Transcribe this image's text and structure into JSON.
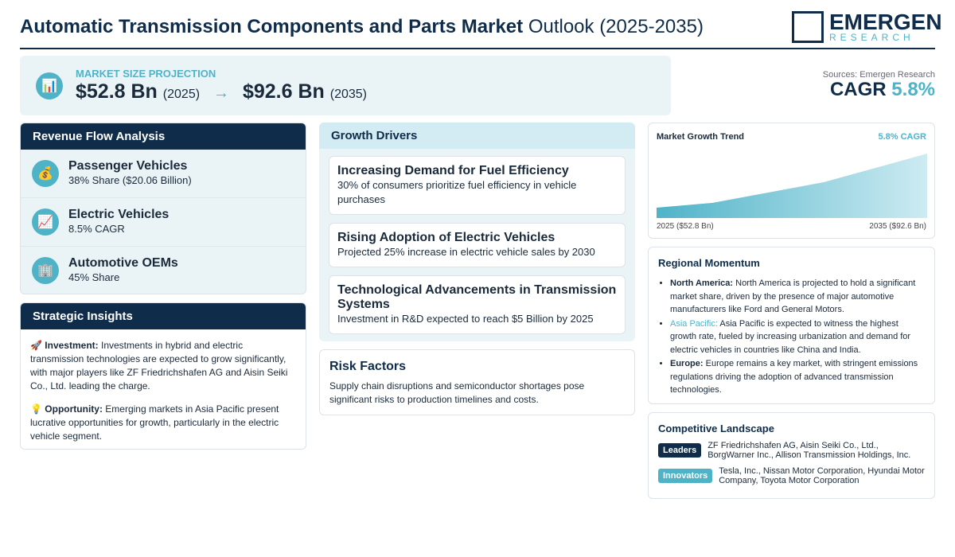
{
  "header": {
    "title_bold": "Automatic Transmission Components and Parts Market",
    "title_rest": "Outlook (2025-2035)",
    "logo_main": "EMERGEN",
    "logo_sub": "RESEARCH"
  },
  "projection": {
    "icon": "📊",
    "label": "MARKET SIZE PROJECTION",
    "start_value": "$52.8 Bn",
    "start_year": "(2025)",
    "arrow": "→",
    "end_value": "$92.6 Bn",
    "end_year": "(2035)"
  },
  "summary": {
    "sources": "Sources: Emergen Research",
    "cagr_label": "CAGR",
    "cagr_value": "5.8%"
  },
  "revenue": {
    "title": "Revenue Flow Analysis",
    "items": [
      {
        "icon": "💰",
        "name": "Passenger Vehicles",
        "detail": "38% Share ($20.06 Billion)"
      },
      {
        "icon": "📈",
        "name": "Electric Vehicles",
        "detail": "8.5% CAGR"
      },
      {
        "icon": "🏢",
        "name": "Automotive OEMs",
        "detail": "45% Share"
      }
    ]
  },
  "insights": {
    "title": "Strategic Insights",
    "items": [
      {
        "icon": "🚀",
        "label": "Investment:",
        "text": "Investments in hybrid and electric transmission technologies are expected to grow significantly, with major players like ZF Friedrichshafen AG and Aisin Seiki Co., Ltd. leading the charge."
      },
      {
        "icon": "💡",
        "label": "Opportunity:",
        "text": "Emerging markets in Asia Pacific present lucrative opportunities for growth, particularly in the electric vehicle segment."
      }
    ]
  },
  "drivers": {
    "title": "Growth Drivers",
    "items": [
      {
        "title": "Increasing Demand for Fuel Efficiency",
        "text": "30% of consumers prioritize fuel efficiency in vehicle purchases"
      },
      {
        "title": "Rising Adoption of Electric Vehicles",
        "text": "Projected 25% increase in electric vehicle sales by 2030"
      },
      {
        "title": "Technological Advancements in Transmission Systems",
        "text": "Investment in R&D expected to reach $5 Billion by 2025"
      }
    ]
  },
  "risk": {
    "title": "Risk Factors",
    "text": "Supply chain disruptions and semiconductor shortages pose significant risks to production timelines and costs."
  },
  "trend": {
    "title": "Market Growth Trend",
    "cagr": "5.8% CAGR",
    "start_label": "2025 ($52.8 Bn)",
    "end_label": "2035 ($92.6 Bn)"
  },
  "regional": {
    "title": "Regional Momentum",
    "items": [
      {
        "region": "North America:",
        "text": "North America is projected to hold a significant market share, driven by the presence of major automotive manufacturers like Ford and General Motors."
      },
      {
        "region": "Asia Pacific:",
        "text": "Asia Pacific is expected to witness the highest growth rate, fueled by increasing urbanization and demand for electric vehicles in countries like China and India."
      },
      {
        "region": "Europe:",
        "text": "Europe remains a key market, with stringent emissions regulations driving the adoption of advanced transmission technologies."
      }
    ]
  },
  "competitive": {
    "title": "Competitive Landscape",
    "groups": [
      {
        "badge": "Leaders",
        "names": "ZF Friedrichshafen AG, Aisin Seiki Co., Ltd., BorgWarner Inc., Allison Transmission Holdings, Inc."
      },
      {
        "badge": "Innovators",
        "names": "Tesla, Inc., Nissan Motor Corporation, Hyundai Motor Company, Toyota Motor Corporation"
      }
    ]
  }
}
